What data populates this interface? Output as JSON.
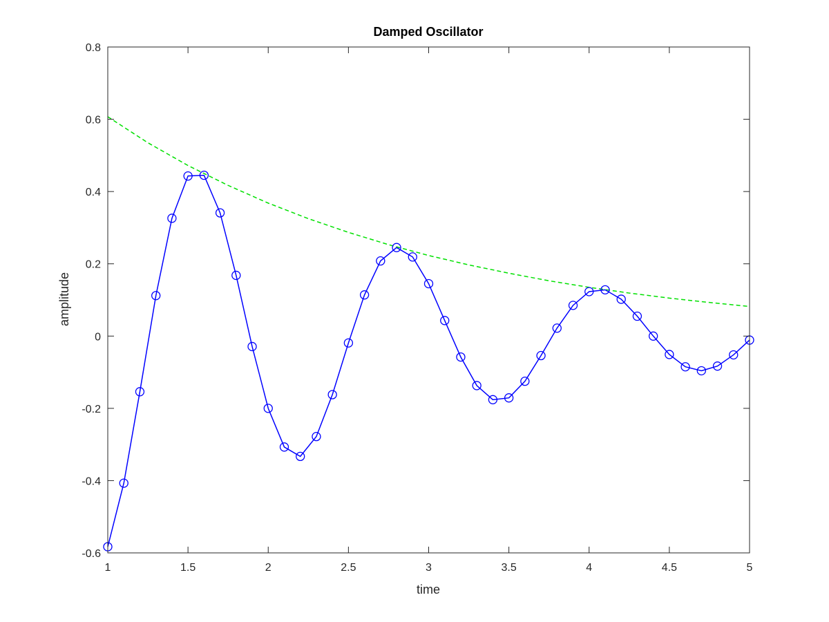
{
  "chart_data": {
    "type": "line",
    "title": "Damped Oscillator",
    "xlabel": "time",
    "ylabel": "amplitude",
    "xlim": [
      1,
      5
    ],
    "ylim": [
      -0.6,
      0.8
    ],
    "xticks": [
      1,
      1.5,
      2,
      2.5,
      3,
      3.5,
      4,
      4.5,
      5
    ],
    "xtick_labels": [
      "1",
      "1.5",
      "2",
      "2.5",
      "3",
      "3.5",
      "4",
      "4.5",
      "5"
    ],
    "yticks": [
      -0.6,
      -0.4,
      -0.2,
      0,
      0.2,
      0.4,
      0.6,
      0.8
    ],
    "ytick_labels": [
      "-0.6",
      "-0.4",
      "-0.2",
      "0",
      "0.2",
      "0.4",
      "0.6",
      "0.8"
    ],
    "grid": false,
    "legend": "none",
    "colors": {
      "signal": "#0000ff",
      "envelope": "#00e000",
      "axes": "#262626"
    },
    "series": [
      {
        "style": "solid-with-circle-markers",
        "x": [
          1.0,
          1.1,
          1.2,
          1.3,
          1.4,
          1.5,
          1.6,
          1.7,
          1.8,
          1.9,
          2.0,
          2.1,
          2.2,
          2.3,
          2.4,
          2.5,
          2.6,
          2.7,
          2.8,
          2.9,
          3.0,
          3.1,
          3.2,
          3.3,
          3.4,
          3.5,
          3.6,
          3.7,
          3.8,
          3.9,
          4.0,
          4.1,
          4.2,
          4.3,
          4.4,
          4.5,
          4.6,
          4.7,
          4.8,
          4.9,
          5.0
        ],
        "values": [
          -0.583,
          -0.407,
          -0.154,
          0.112,
          0.326,
          0.443,
          0.445,
          0.341,
          0.168,
          -0.029,
          -0.2,
          -0.307,
          -0.333,
          -0.278,
          -0.162,
          -0.019,
          0.114,
          0.208,
          0.245,
          0.219,
          0.145,
          0.043,
          -0.058,
          -0.137,
          -0.176,
          -0.171,
          -0.125,
          -0.054,
          0.022,
          0.085,
          0.123,
          0.128,
          0.102,
          0.055,
          0.0,
          -0.051,
          -0.085,
          -0.096,
          -0.083,
          -0.052,
          -0.011
        ]
      },
      {
        "style": "dashed",
        "x": [
          1.0,
          1.25,
          1.5,
          1.75,
          2.0,
          2.25,
          2.5,
          2.75,
          3.0,
          3.25,
          3.5,
          3.75,
          4.0,
          4.25,
          4.5,
          4.75,
          5.0
        ],
        "values": [
          0.607,
          0.535,
          0.472,
          0.417,
          0.368,
          0.325,
          0.287,
          0.253,
          0.223,
          0.197,
          0.174,
          0.153,
          0.135,
          0.119,
          0.105,
          0.093,
          0.082
        ]
      }
    ]
  }
}
